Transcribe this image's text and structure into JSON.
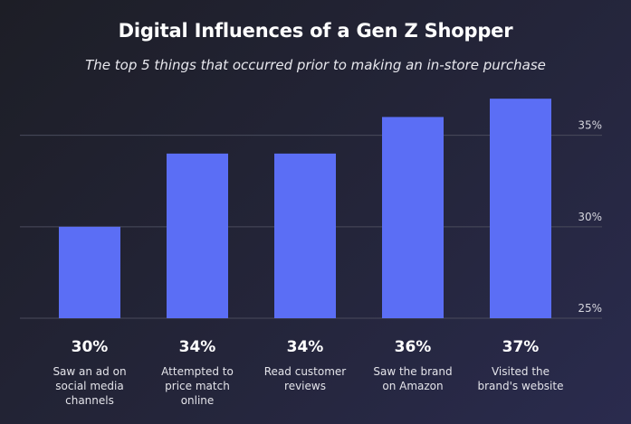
{
  "chart_data": {
    "type": "bar",
    "title": "Digital Influences of a Gen Z Shopper",
    "subtitle": "The top 5 things that occurred prior to making an in-store purchase",
    "categories": [
      "Saw an ad on social media channels",
      "Attempted to price match online",
      "Read customer reviews",
      "Saw the brand on Amazon",
      "Visited the brand's website"
    ],
    "category_lines": [
      [
        "Saw an ad on",
        "social media",
        "channels"
      ],
      [
        "Attempted to",
        "price match",
        "online"
      ],
      [
        "Read customer",
        "reviews"
      ],
      [
        "Saw the brand",
        "on Amazon"
      ],
      [
        "Visited the",
        "brand's website"
      ]
    ],
    "values": [
      30,
      34,
      34,
      36,
      37
    ],
    "value_labels": [
      "30%",
      "34%",
      "34%",
      "36%",
      "37%"
    ],
    "y_ticks": [
      25,
      30,
      35
    ],
    "y_tick_labels": [
      "25%",
      "30%",
      "35%"
    ],
    "ylim": [
      25,
      37.7
    ],
    "grid": true,
    "axis_position": "right",
    "bar_color": "#5b6ef5",
    "grid_color": "#4a4b5c"
  }
}
